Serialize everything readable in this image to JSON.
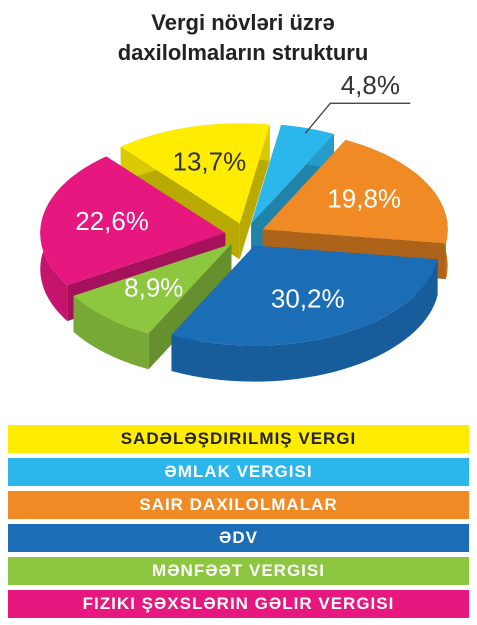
{
  "chart_data": {
    "type": "pie",
    "title": "Vergi növləri üzrə daxilolmaların strukturu",
    "categories": [
      "SADƏLƏŞDIRILMIŞ VERGI",
      "ƏMLAK VERGISI",
      "SAIR DAXILOLMALAR",
      "ƏDV",
      "MƏNFƏƏT VERGISI",
      "FIZIKI ŞƏXSLƏRIN GƏLIR VERGISI"
    ],
    "values": [
      13.7,
      4.8,
      19.8,
      30.2,
      8.9,
      22.6
    ],
    "value_labels": [
      "13,7%",
      "4,8%",
      "19,8%",
      "30,2%",
      "8,9%",
      "22,6%"
    ],
    "colors": [
      "#ffec00",
      "#2cb7ec",
      "#f08a24",
      "#1b6db6",
      "#8dc63f",
      "#e6177f"
    ],
    "legend": "bottom"
  }
}
